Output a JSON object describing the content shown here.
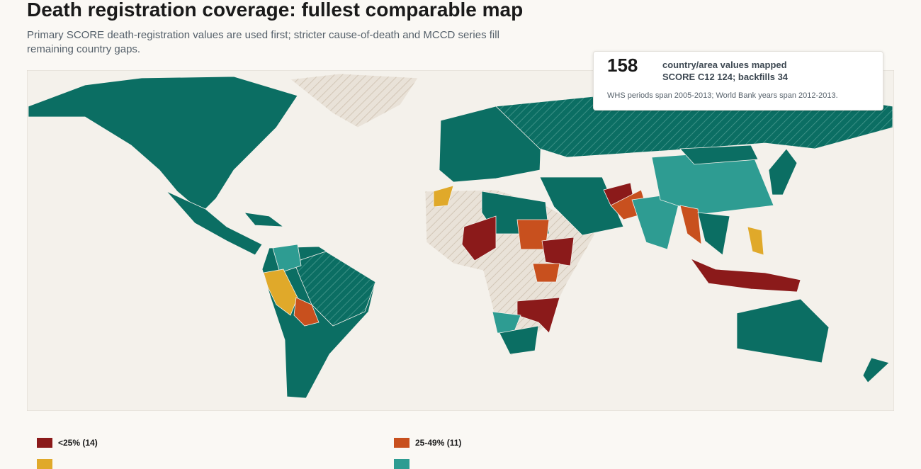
{
  "header": {
    "title": "Death registration coverage: fullest comparable map",
    "subtitle": "Primary SCORE death-registration values are used first; stricter cause-of-death and MCCD series fill remaining country gaps."
  },
  "stat": {
    "value": 158,
    "label": "country/area values mapped",
    "detail": "SCORE C12 124; backfills 34",
    "note": "WHS periods span 2005-2013; World Bank years span 2012-2013."
  },
  "legend": [
    {
      "label": "<25% (14)",
      "color": "#8b1a1a"
    },
    {
      "label": "25-49% (11)",
      "color": "#c8501e"
    }
  ]
}
